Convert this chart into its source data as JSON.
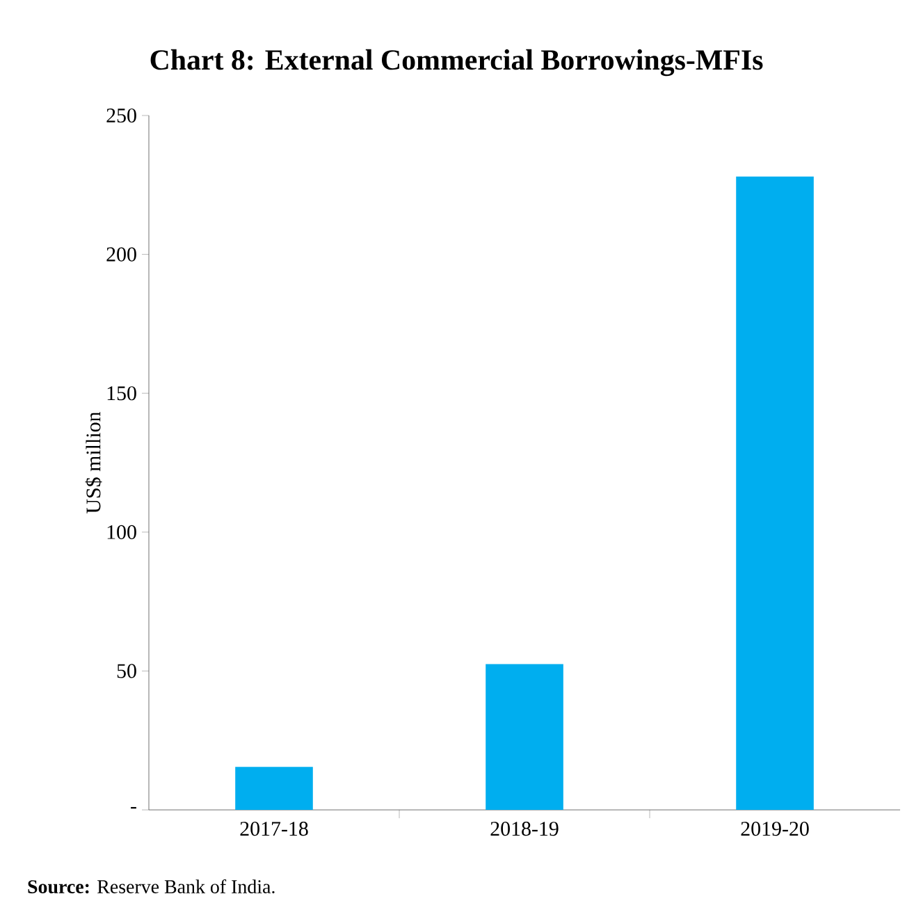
{
  "chart_data": {
    "type": "bar",
    "title": "Chart 8: External Commercial Borrowings-MFIs",
    "ylabel": "US$ million",
    "categories": [
      "2017-18",
      "2018-19",
      "2019-20"
    ],
    "values": [
      15.5,
      52.5,
      228
    ],
    "color": "#00aeef",
    "ylim": [
      0,
      250
    ],
    "yticks": [
      {
        "value": 0,
        "label": "-"
      },
      50,
      100,
      150,
      200,
      250
    ],
    "grid": false,
    "annotations": [
      "**Source:** Reserve Bank of India."
    ]
  }
}
